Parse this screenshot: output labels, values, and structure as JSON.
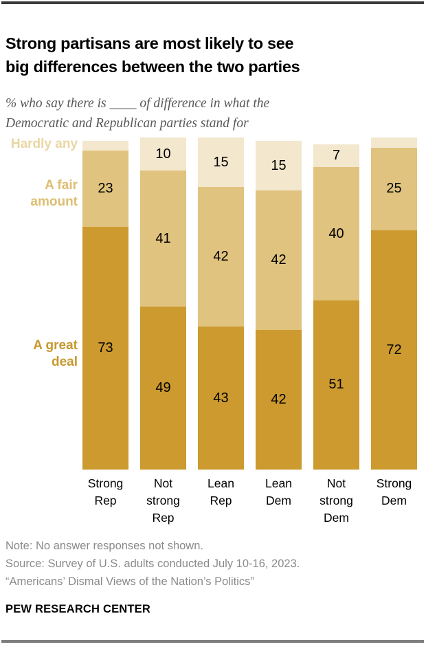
{
  "header": {
    "title_lines": [
      "Strong partisans are most likely to see",
      "big differences between the two parties"
    ],
    "subtitle_lines": [
      "% who say there is ____ of difference in what the",
      "Democratic and Republican parties stand for"
    ]
  },
  "chart_data": {
    "type": "bar",
    "subtype": "stacked-100pct-vertical",
    "unit": "percent",
    "categories": [
      "Strong Rep",
      "Not strong Rep",
      "Lean Rep",
      "Lean Dem",
      "Not strong Dem",
      "Strong Dem"
    ],
    "series": [
      {
        "name": "A great deal",
        "color": "#cc9a2e",
        "label_color": "#c7982e",
        "values": [
          73,
          49,
          43,
          42,
          51,
          72
        ],
        "show_labels": [
          true,
          true,
          true,
          true,
          true,
          true
        ]
      },
      {
        "name": "A fair amount",
        "color": "#e0c37e",
        "label_color": "#ddbe72",
        "values": [
          23,
          41,
          42,
          42,
          40,
          25
        ],
        "show_labels": [
          true,
          true,
          true,
          true,
          true,
          true
        ]
      },
      {
        "name": "Hardly any",
        "color": "#f3e7ce",
        "label_color": "#e9d6a3",
        "values": [
          3,
          10,
          15,
          15,
          7,
          3
        ],
        "show_labels": [
          false,
          true,
          true,
          true,
          true,
          false
        ]
      }
    ],
    "stack_order_bottom_to_top": [
      "A great deal",
      "A fair amount",
      "Hardly any"
    ],
    "ylim": [
      0,
      100
    ],
    "grid": false,
    "legend_position": "left"
  },
  "footer": {
    "note": "Note: No answer responses not shown.",
    "source": "Source: Survey of U.S. adults conducted July 10-16, 2023.",
    "quote": "“Americans’ Dismal Views of the Nation’s Politics”",
    "brand": "PEW RESEARCH CENTER"
  }
}
